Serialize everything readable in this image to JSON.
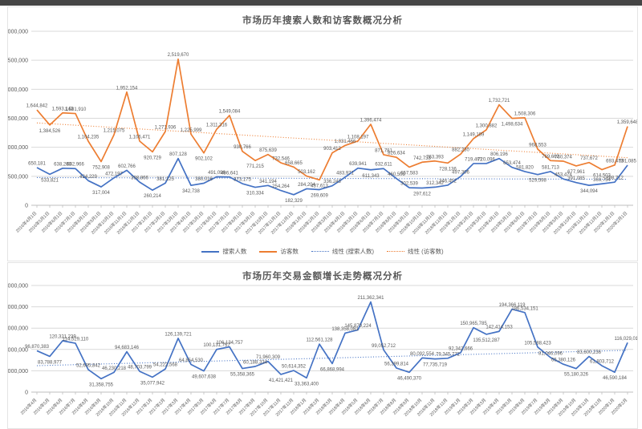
{
  "window": {
    "top_strip_color": "#454545"
  },
  "charts": [
    {
      "title": "市场历年搜索人数和访客数概况分析",
      "type": "line",
      "grid": true,
      "legend_position": "bottom",
      "y_axis": {
        "min": 0,
        "max": 3000000,
        "step": 500000
      },
      "categories": [
        "2016年4月1日",
        "2016年5月1日",
        "2016年6月1日",
        "2016年7月1日",
        "2016年8月1日",
        "2016年9月1日",
        "2016年10月1日",
        "2016年11月1日",
        "2016年12月1日",
        "2017年1月1日",
        "2017年2月1日",
        "2017年3月1日",
        "2017年4月1日",
        "2017年5月1日",
        "2017年6月1日",
        "2017年7月1日",
        "2017年8月1日",
        "2017年9月1日",
        "2017年10月1日",
        "2017年11月1日",
        "2017年12月1日",
        "2018年1月1日",
        "2018年2月1日",
        "2018年3月1日",
        "2018年4月1日",
        "2018年5月1日",
        "2018年6月1日",
        "2018年7月1日",
        "2018年8月1日",
        "2018年9月1日",
        "2018年10月1日",
        "2018年11月1日",
        "2018年12月1日",
        "2019年1月1日",
        "2019年2月1日",
        "2019年3月1日",
        "2019年4月1日",
        "2019年5月1日",
        "2019年6月1日",
        "2019年7月1日",
        "2019年8月1日",
        "2019年9月1日",
        "2019年10月1日",
        "2019年11月1日",
        "2019年12月1日",
        "2020年1月1日",
        "2020年2月1日"
      ],
      "series": [
        {
          "name": "搜索人数",
          "color": "#4472C4",
          "values": [
            650181,
            533821,
            638288,
            632966,
            424229,
            317004,
            472197,
            602766,
            398866,
            260214,
            381125,
            807128,
            342738,
            380016,
            491096,
            486641,
            373175,
            310334,
            341194,
            254264,
            182329,
            284204,
            269609,
            336243,
            483971,
            639941,
            611343,
            632611,
            460508,
            302539,
            297612,
            312342,
            346452,
            497306,
            719491,
            720096,
            806196,
            653474,
            581820,
            529598,
            581713,
            453474,
            391085,
            344094,
            369754,
            398712,
            691085
          ]
        },
        {
          "name": "访客数",
          "color": "#ED7D31",
          "values": [
            1644842,
            1384526,
            1593143,
            1581910,
            1104235,
            752908,
            1215075,
            1952154,
            1106471,
            920729,
            1271936,
            2519670,
            1225999,
            902102,
            1311316,
            1549084,
            930766,
            771215,
            875639,
            732546,
            658665,
            503162,
            437613,
            903412,
            1031466,
            1108197,
            1396474,
            871781,
            826634,
            657583,
            742738,
            763393,
            728136,
            882230,
            1149189,
            1300882,
            1732721,
            1498634,
            1508306,
            968553,
            769662,
            760374,
            677961,
            737672,
            614503,
            693473,
            1359648
          ]
        }
      ],
      "trendlines": [
        {
          "name": "线性 (搜索人数)",
          "color": "#4472C4",
          "start": 478000,
          "end": 448000
        },
        {
          "name": "线性 (访客数)",
          "color": "#ED7D31",
          "start": 1420000,
          "end": 820000
        }
      ],
      "legend": [
        "搜索人数",
        "访客数",
        "线性 (搜索人数)",
        "线性 (访客数)"
      ]
    },
    {
      "title": "市场历年交易金额增长走势概况分析",
      "type": "line",
      "grid": true,
      "y_axis": {
        "min": 0,
        "max": 250000000,
        "step": 50000000
      },
      "categories": [
        "2016年4月",
        "2016年5月",
        "2016年6月",
        "2016年7月",
        "2016年8月",
        "2016年9月",
        "2016年10月",
        "2016年11月",
        "2016年12月",
        "2017年1月",
        "2017年2月",
        "2017年3月",
        "2017年4月",
        "2017年5月",
        "2017年6月",
        "2017年7月",
        "2017年8月",
        "2017年9月",
        "2017年10月",
        "2017年11月",
        "2017年12月",
        "2018年1月",
        "2018年2月",
        "2018年3月",
        "2018年4月",
        "2018年5月",
        "2018年6月",
        "2018年7月",
        "2018年8月",
        "2018年9月",
        "2018年10月",
        "2018年11月",
        "2018年12月",
        "2019年1月",
        "2019年2月",
        "2019年3月",
        "2019年4月",
        "2019年5月",
        "2019年6月",
        "2019年7月",
        "2019年8月",
        "2019年9月",
        "2019年10月",
        "2019年11月",
        "2019年12月",
        "2020年1月",
        "2020年2月"
      ],
      "series": [
        {
          "color": "#4472C4",
          "values": [
            96870383,
            83788977,
            120321239,
            114529110,
            52695842,
            31358755,
            46230218,
            94683146,
            48703799,
            35077942,
            54222568,
            126139721,
            64854530,
            49607638,
            100131757,
            106134757,
            55358365,
            60188334,
            71960309,
            41421421,
            50614352,
            33363400,
            112561128,
            66868994,
            138358081,
            145879224,
            211362341,
            99052712,
            56399814,
            46490370,
            80092554,
            77735719,
            79345772,
            92342666,
            150965785,
            135512287,
            142414153,
            194366119,
            186534151,
            105588423,
            81046096,
            65380126,
            55180326,
            83600236,
            61803712,
            46590184,
            116029018
          ]
        }
      ],
      "trendlines": [
        {
          "color": "#4472C4",
          "start": 62000000,
          "end": 98000000
        }
      ]
    }
  ]
}
